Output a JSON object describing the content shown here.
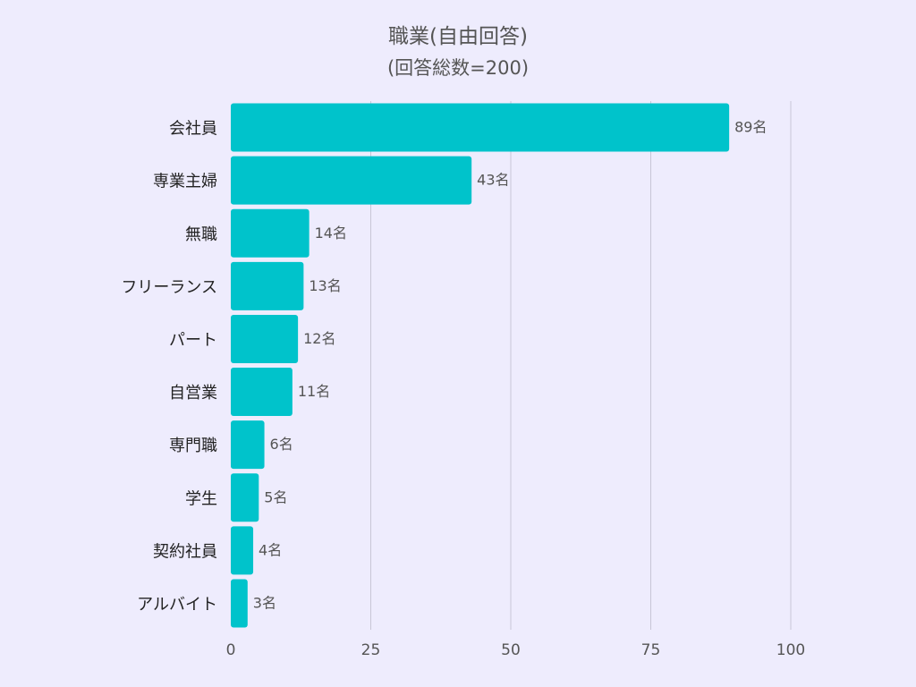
{
  "chart_data": {
    "type": "bar",
    "orientation": "horizontal",
    "title": "職業(自由回答)",
    "subtitle": "(回答総数=200)",
    "categories": [
      "会社員",
      "専業主婦",
      "無職",
      "フリーランス",
      "パート",
      "自営業",
      "専門職",
      "学生",
      "契約社員",
      "アルバイト"
    ],
    "values": [
      89,
      43,
      14,
      13,
      12,
      11,
      6,
      5,
      4,
      3
    ],
    "data_labels": [
      "89名",
      "43名",
      "14名",
      "13名",
      "12名",
      "11名",
      "6名",
      "5名",
      "4名",
      "3名"
    ],
    "x_ticks": [
      "0",
      "25",
      "50",
      "75",
      "100"
    ],
    "xlim": [
      0,
      100
    ],
    "grid": "vertical",
    "bar_color": "#00c3cb"
  }
}
